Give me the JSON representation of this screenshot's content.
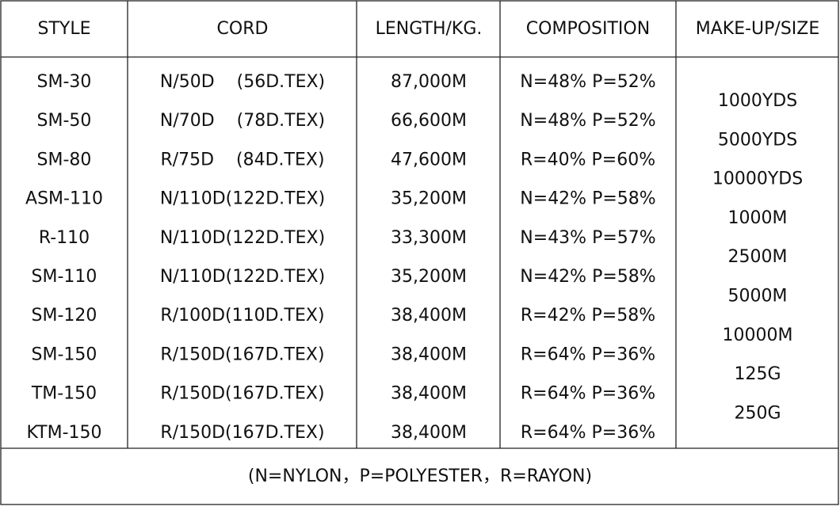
{
  "table": {
    "header": [
      "STYLE",
      "CORD",
      "LENGTH/KG.",
      "COMPOSITION",
      "MAKE-UP/SIZE"
    ],
    "rows": [
      [
        "SM-30",
        "N/50D    (56D.TEX)",
        "87,000M",
        "N=48% P=52%"
      ],
      [
        "SM-50",
        "N/70D    (78D.TEX)",
        "66,600M",
        "N=48% P=52%"
      ],
      [
        "SM-80",
        "R/75D    (84D.TEX)",
        "47,600M",
        "R=40% P=60%"
      ],
      [
        "ASM-110",
        "N/110D(122D.TEX)",
        "35,200M",
        "N=42% P=58%"
      ],
      [
        "R-110",
        "N/110D(122D.TEX)",
        "33,300M",
        "N=43% P=57%"
      ],
      [
        "SM-110",
        "N/110D(122D.TEX)",
        "35,200M",
        "N=42% P=58%"
      ],
      [
        "SM-120",
        "R/100D(110D.TEX)",
        "38,400M",
        "R=42% P=58%"
      ],
      [
        "SM-150",
        "R/150D(167D.TEX)",
        "38,400M",
        "R=64% P=36%"
      ],
      [
        "TM-150",
        "R/150D(167D.TEX)",
        "38,400M",
        "R=64% P=36%"
      ],
      [
        "KTM-150",
        "R/150D(167D.TEX)",
        "38,400M",
        "R=64% P=36%"
      ]
    ],
    "makeup": [
      "1000YDS",
      "5000YDS",
      "10000YDS",
      "1000M",
      "2500M",
      "5000M",
      "10000M",
      "125G",
      "250G"
    ],
    "footnote": "(N=NYLON，P=POLYESTER，R=RAYON)"
  }
}
